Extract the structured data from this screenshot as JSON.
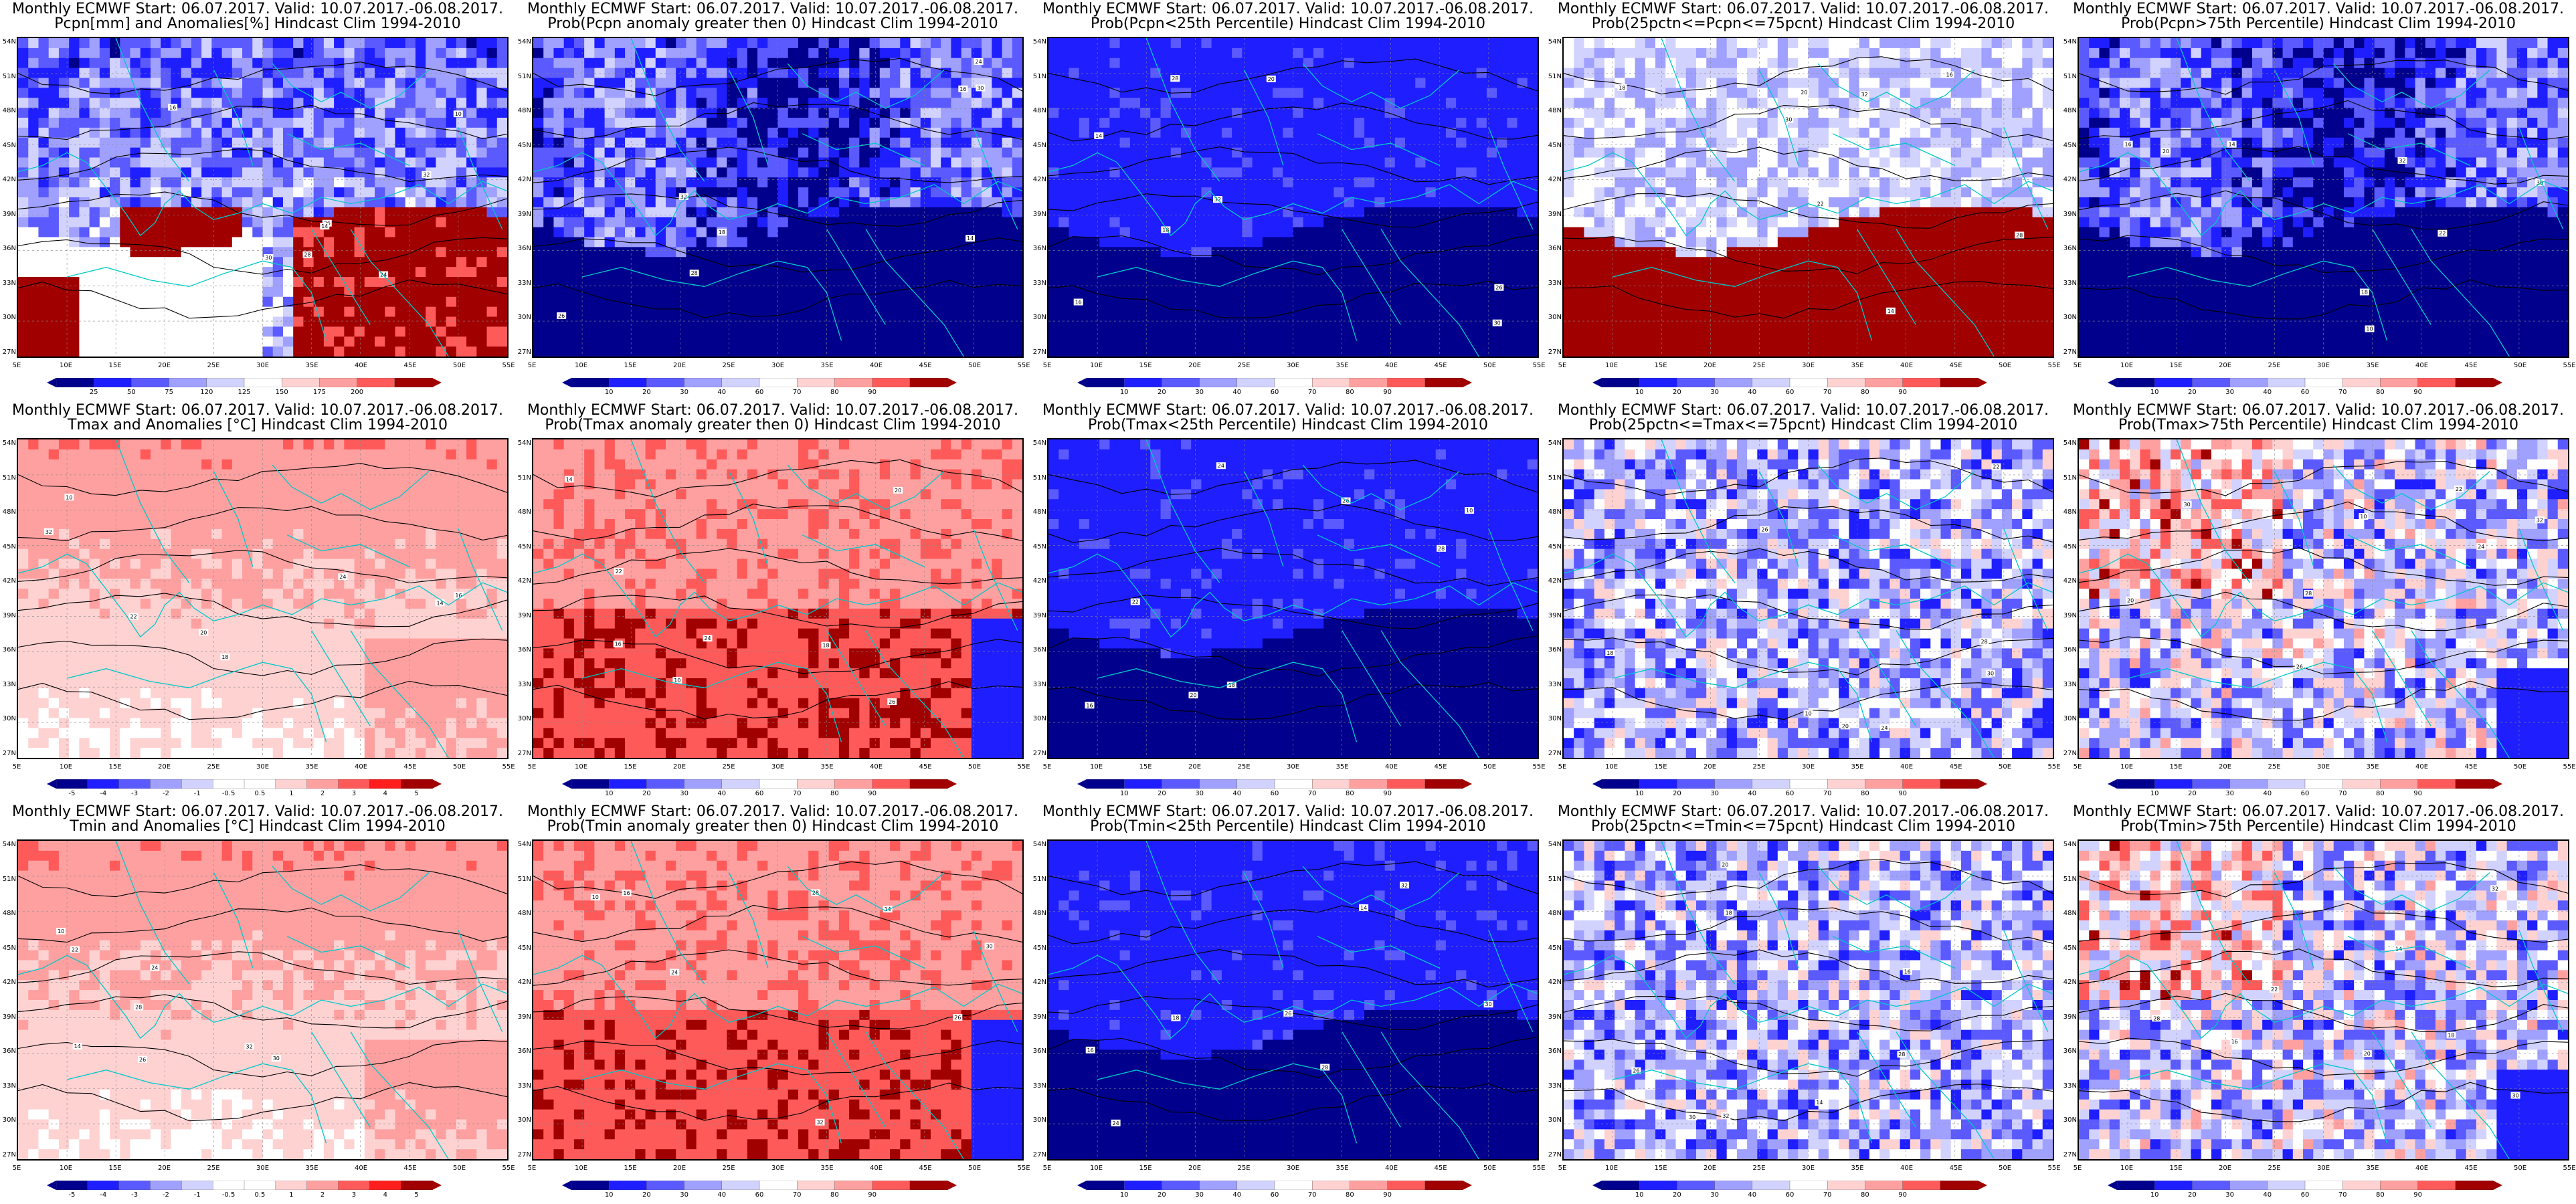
{
  "panels": [
    {
      "line1": "Monthly ECMWF Start: 06.07.2017. Valid: 10.07.2017.-06.08.2017.",
      "line2": "Pcpn[mm] and Anomalies[%] Hindcast Clim 1994-2010",
      "scheme": "pcpn_anom",
      "colorbar": [
        "25",
        "50",
        "75",
        "120",
        "125",
        "150",
        "175",
        "200"
      ]
    },
    {
      "line1": "Monthly ECMWF Start: 06.07.2017. Valid: 10.07.2017.-06.08.2017.",
      "line2": "Prob(Pcpn anomaly greater then 0) Hindcast Clim 1994-2010",
      "scheme": "prob_blue",
      "colorbar": [
        "10",
        "20",
        "30",
        "40",
        "60",
        "70",
        "80",
        "90"
      ]
    },
    {
      "line1": "Monthly ECMWF Start: 06.07.2017. Valid: 10.07.2017.-06.08.2017.",
      "line2": "Prob(Pcpn<25th Percentile) Hindcast Clim 1994-2010",
      "scheme": "prob_deepblue",
      "colorbar": [
        "10",
        "20",
        "30",
        "40",
        "60",
        "70",
        "80",
        "90"
      ]
    },
    {
      "line1": "Monthly ECMWF Start: 06.07.2017. Valid: 10.07.2017.-06.08.2017.",
      "line2": "Prob(25pctn<=Pcpn<=75pcnt) Hindcast Clim 1994-2010",
      "scheme": "prob_redsouth",
      "colorbar": [
        "10",
        "20",
        "30",
        "40",
        "60",
        "70",
        "80",
        "90"
      ]
    },
    {
      "line1": "Monthly ECMWF Start: 06.07.2017. Valid: 10.07.2017.-06.08.2017.",
      "line2": "Prob(Pcpn>75th Percentile) Hindcast Clim 1994-2010",
      "scheme": "prob_blue",
      "colorbar": [
        "10",
        "20",
        "30",
        "40",
        "60",
        "70",
        "80",
        "90"
      ]
    },
    {
      "line1": "Monthly ECMWF Start: 06.07.2017. Valid: 10.07.2017.-06.08.2017.",
      "line2": "Tmax and Anomalies [°C] Hindcast Clim 1994-2010",
      "scheme": "temp_anom",
      "colorbar": [
        "-5",
        "-4",
        "-3",
        "-2",
        "-1",
        "-0.5",
        "0.5",
        "1",
        "2",
        "3",
        "4",
        "5"
      ]
    },
    {
      "line1": "Monthly ECMWF Start: 06.07.2017. Valid: 10.07.2017.-06.08.2017.",
      "line2": "Prob(Tmax anomaly greater then 0) Hindcast Clim 1994-2010",
      "scheme": "prob_red",
      "colorbar": [
        "10",
        "20",
        "30",
        "40",
        "60",
        "70",
        "80",
        "90"
      ]
    },
    {
      "line1": "Monthly ECMWF Start: 06.07.2017. Valid: 10.07.2017.-06.08.2017.",
      "line2": "Prob(Tmax<25th Percentile) Hindcast Clim 1994-2010",
      "scheme": "prob_deepblue",
      "colorbar": [
        "10",
        "20",
        "30",
        "40",
        "60",
        "70",
        "80",
        "90"
      ]
    },
    {
      "line1": "Monthly ECMWF Start: 06.07.2017. Valid: 10.07.2017.-06.08.2017.",
      "line2": "Prob(25pctn<=Tmax<=75pcnt) Hindcast Clim 1994-2010",
      "scheme": "prob_mixed",
      "colorbar": [
        "10",
        "20",
        "30",
        "40",
        "60",
        "70",
        "80",
        "90"
      ]
    },
    {
      "line1": "Monthly ECMWF Start: 06.07.2017. Valid: 10.07.2017.-06.08.2017.",
      "line2": "Prob(Tmax>75th Percentile) Hindcast Clim 1994-2010",
      "scheme": "prob_mixedred",
      "colorbar": [
        "10",
        "20",
        "30",
        "40",
        "60",
        "70",
        "80",
        "90"
      ]
    },
    {
      "line1": "Monthly ECMWF Start: 06.07.2017. Valid: 10.07.2017.-06.08.2017.",
      "line2": "Tmin and Anomalies [°C] Hindcast Clim 1994-2010",
      "scheme": "temp_anom",
      "colorbar": [
        "-5",
        "-4",
        "-3",
        "-2",
        "-1",
        "-0.5",
        "0.5",
        "1",
        "2",
        "3",
        "4",
        "5"
      ]
    },
    {
      "line1": "Monthly ECMWF Start: 06.07.2017. Valid: 10.07.2017.-06.08.2017.",
      "line2": "Prob(Tmin anomaly greater then 0) Hindcast Clim 1994-2010",
      "scheme": "prob_red",
      "colorbar": [
        "10",
        "20",
        "30",
        "40",
        "60",
        "70",
        "80",
        "90"
      ]
    },
    {
      "line1": "Monthly ECMWF Start: 06.07.2017. Valid: 10.07.2017.-06.08.2017.",
      "line2": "Prob(Tmin<25th Percentile) Hindcast Clim 1994-2010",
      "scheme": "prob_deepblue",
      "colorbar": [
        "10",
        "20",
        "30",
        "40",
        "60",
        "70",
        "80",
        "90"
      ]
    },
    {
      "line1": "Monthly ECMWF Start: 06.07.2017. Valid: 10.07.2017.-06.08.2017.",
      "line2": "Prob(25pctn<=Tmin<=75pcnt) Hindcast Clim 1994-2010",
      "scheme": "prob_mixed",
      "colorbar": [
        "10",
        "20",
        "30",
        "40",
        "60",
        "70",
        "80",
        "90"
      ]
    },
    {
      "line1": "Monthly ECMWF Start: 06.07.2017. Valid: 10.07.2017.-06.08.2017.",
      "line2": "Prob(Tmin>75th Percentile) Hindcast Clim 1994-2010",
      "scheme": "prob_mixedred",
      "colorbar": [
        "10",
        "20",
        "30",
        "40",
        "60",
        "70",
        "80",
        "90"
      ]
    }
  ],
  "lat_labels": [
    "54N",
    "51N",
    "48N",
    "45N",
    "42N",
    "39N",
    "36N",
    "33N",
    "30N",
    "27N"
  ],
  "lon_labels": [
    "5E",
    "10E",
    "15E",
    "20E",
    "25E",
    "30E",
    "35E",
    "40E",
    "45E",
    "50E",
    "55E"
  ],
  "contour_labels": [
    "10",
    "24",
    "26",
    "28",
    "30",
    "32",
    "14",
    "16",
    "18",
    "20",
    "22"
  ],
  "colors": {
    "darkblue": "#00008c",
    "blue": "#1e1eff",
    "midblue": "#5a5aff",
    "lightblue": "#a0a0ff",
    "paleblue": "#d2d2ff",
    "white": "#ffffff",
    "palered": "#ffd2d2",
    "lightred": "#ffa0a0",
    "midred": "#ff5a5a",
    "red": "#ff1e1e",
    "darkred": "#a00000",
    "coast": "#00c8c8",
    "contour": "#000000"
  }
}
